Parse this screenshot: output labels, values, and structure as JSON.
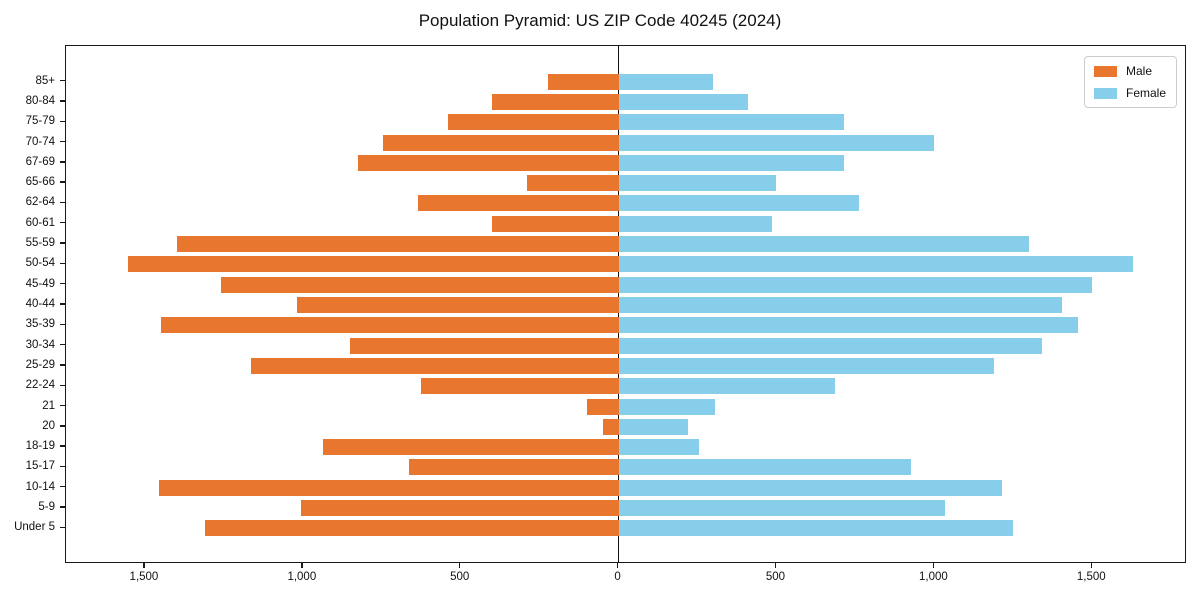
{
  "title": "Population Pyramid: US ZIP Code 40245 (2024)",
  "legend": {
    "male_label": "Male",
    "female_label": "Female"
  },
  "colors": {
    "male": "#E8762E",
    "female": "#87CEEB",
    "axis": "#1a1a1a"
  },
  "chart_data": {
    "type": "bar",
    "subtype": "population-pyramid",
    "title": "Population Pyramid: US ZIP Code 40245 (2024)",
    "xlabel": "",
    "ylabel": "",
    "grid": false,
    "legend_position": "upper right",
    "categories": [
      "85+",
      "80-84",
      "75-79",
      "70-74",
      "67-69",
      "65-66",
      "62-64",
      "60-61",
      "55-59",
      "50-54",
      "45-49",
      "40-44",
      "35-39",
      "30-34",
      "25-29",
      "22-24",
      "21",
      "20",
      "18-19",
      "15-17",
      "10-14",
      "5-9",
      "Under 5"
    ],
    "series": [
      {
        "name": "Male",
        "side": "left",
        "values": [
          225,
          400,
          540,
          745,
          825,
          290,
          635,
          400,
          1400,
          1555,
          1260,
          1020,
          1450,
          850,
          1165,
          625,
          100,
          50,
          935,
          665,
          1455,
          1005,
          1310
        ]
      },
      {
        "name": "Female",
        "side": "right",
        "values": [
          300,
          410,
          715,
          1000,
          715,
          500,
          760,
          485,
          1300,
          1630,
          1500,
          1405,
          1455,
          1340,
          1190,
          685,
          305,
          220,
          255,
          925,
          1215,
          1035,
          1250
        ]
      }
    ],
    "x_tick_values": [
      -1500,
      -1000,
      -500,
      0,
      500,
      1000,
      1500
    ],
    "x_tick_labels": [
      "1,500",
      "1,000",
      "500",
      "0",
      "500",
      "1,000",
      "1,500"
    ],
    "xlim": [
      -1750,
      1800
    ]
  }
}
